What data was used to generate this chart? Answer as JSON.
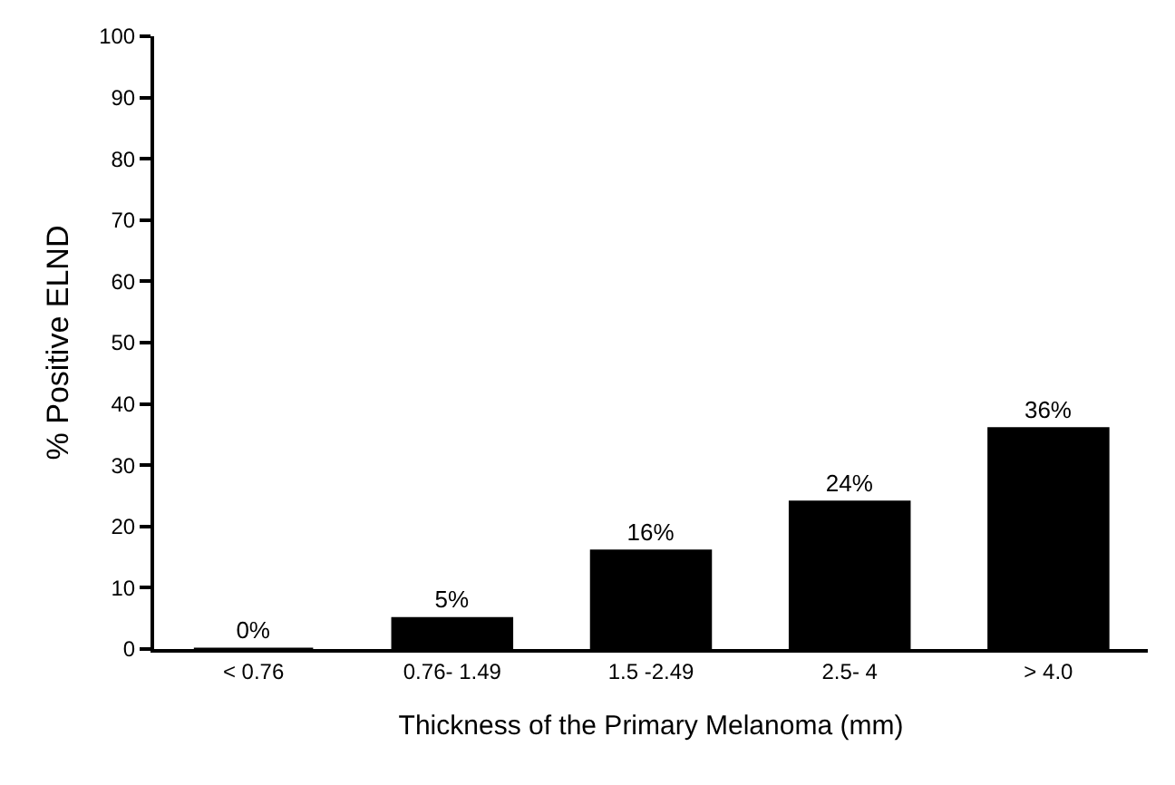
{
  "chart_data": {
    "type": "bar",
    "xlabel": "Thickness of the Primary Melanoma (mm)",
    "ylabel": "% Positive ELND",
    "categories": [
      "< 0.76",
      "0.76- 1.49",
      "1.5 -2.49",
      "2.5- 4",
      "> 4.0"
    ],
    "values": [
      0,
      5,
      16,
      24,
      36
    ],
    "value_labels": [
      "0%",
      "5%",
      "16%",
      "24%",
      "36%"
    ],
    "color": "#000000",
    "ylim": [
      0,
      100
    ],
    "yticks": [
      0,
      10,
      20,
      30,
      40,
      50,
      60,
      70,
      80,
      90,
      100
    ]
  }
}
